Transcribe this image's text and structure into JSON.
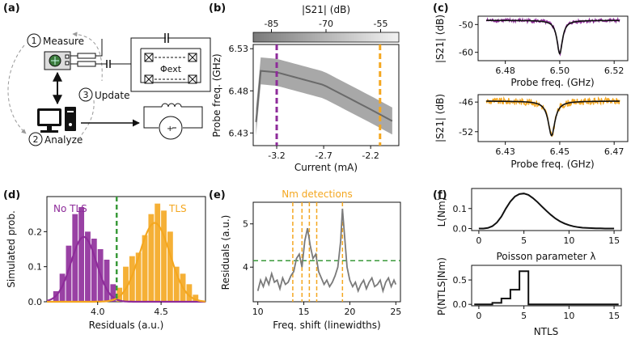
{
  "panels": {
    "a": {
      "label": "(a)",
      "steps": [
        {
          "num": "1",
          "text": "Measure"
        },
        {
          "num": "2",
          "text": "Analyze"
        },
        {
          "num": "3",
          "text": "Update"
        }
      ],
      "flux_label": "Φext"
    },
    "b": {
      "label": "(b)",
      "colorbar_label": "|S21| (dB)",
      "colorbar_ticks": [
        "-85",
        "-70",
        "-55"
      ],
      "ylabel": "Probe freq. (GHz)",
      "xlabel": "Current (mA)",
      "yticks": [
        "6.53",
        "6.48",
        "6.43"
      ],
      "xticks": [
        "-3.2",
        "-2.7",
        "-2.2"
      ],
      "markers": [
        {
          "current_mA": -3.2,
          "color": "#8e2c9a"
        },
        {
          "current_mA": -2.1,
          "color": "#f4a720"
        }
      ]
    },
    "c": {
      "label": "(c)",
      "top": {
        "ylabel": "|S21| (dB)",
        "xlabel": "Probe freq. (GHz)",
        "yticks": [
          "-50",
          "-60"
        ],
        "xticks": [
          "6.48",
          "6.50",
          "6.52"
        ],
        "color": "#8e2c9a"
      },
      "bottom": {
        "ylabel": "|S21| (dB)",
        "xlabel": "Probe freq. (GHz)",
        "yticks": [
          "-46",
          "-52"
        ],
        "xticks": [
          "6.43",
          "6.45",
          "6.47"
        ],
        "color": "#f4a720"
      }
    },
    "d": {
      "label": "(d)",
      "ylabel": "Simulated prob.",
      "xlabel": "Residuals (a.u.)",
      "yticks": [
        "0.2",
        "0.1",
        "0.0"
      ],
      "xticks": [
        "4.0",
        "4.5"
      ],
      "legend_left": "No TLS",
      "legend_right": "TLS",
      "colors": {
        "no_tls": "#8e2c9a",
        "tls": "#f4a720",
        "threshold": "#3a9a3a"
      }
    },
    "e": {
      "label": "(e)",
      "title": "Nm detections",
      "ylabel": "Residuals (a.u.)",
      "xlabel": "Freq. shift (linewidths)",
      "yticks": [
        "5",
        "4"
      ],
      "xticks": [
        "10",
        "15",
        "20",
        "25"
      ]
    },
    "f": {
      "label": "(f)",
      "top": {
        "ylabel": "L(Nm)",
        "xlabel": "Poisson parameter λ",
        "yticks": [
          "0.1",
          "0.0"
        ],
        "xticks": [
          "0",
          "5",
          "10",
          "15"
        ]
      },
      "bottom": {
        "ylabel": "P(NTLS|Nm)",
        "xlabel": "NTLS",
        "yticks": [
          "0.5",
          "0.0"
        ],
        "xticks": [
          "0",
          "5",
          "10",
          "15"
        ]
      }
    }
  },
  "chart_data": [
    {
      "type": "heatmap",
      "panel": "b",
      "title": "",
      "xlabel": "Current (mA)",
      "ylabel": "Probe freq. (GHz)",
      "colorbar_label": "|S21| (dB)",
      "xlim": [
        -3.45,
        -1.9
      ],
      "ylim": [
        6.415,
        6.535
      ],
      "zlim": [
        -90,
        -50
      ],
      "resonance": {
        "x": [
          -3.4,
          -3.2,
          -2.7,
          -2.2,
          -1.95
        ],
        "y": [
          6.504,
          6.502,
          6.487,
          6.458,
          6.443
        ]
      },
      "band_halfwidth_ghz": 0.016,
      "dashed_lines_x": [
        -3.2,
        -2.1
      ]
    },
    {
      "type": "line",
      "panel": "c-top",
      "xlabel": "Probe freq. (GHz)",
      "ylabel": "|S21| (dB)",
      "xlim": [
        6.47,
        6.525
      ],
      "ylim": [
        -63,
        -47
      ],
      "center": 6.5,
      "depth_db": 12,
      "baseline_db": -48.5,
      "width_ghz": 0.0012
    },
    {
      "type": "line",
      "panel": "c-bottom",
      "xlabel": "Probe freq. (GHz)",
      "ylabel": "|S21| (dB)",
      "xlim": [
        6.42,
        6.475
      ],
      "ylim": [
        -54,
        -44.5
      ],
      "center": 6.447,
      "depth_db": 7,
      "baseline_db": -45.8,
      "width_ghz": 0.0015
    },
    {
      "type": "bar",
      "panel": "d",
      "xlabel": "Residuals (a.u.)",
      "ylabel": "Simulated prob.",
      "xlim": [
        3.6,
        4.85
      ],
      "ylim": [
        0,
        0.3
      ],
      "series": [
        {
          "name": "No TLS",
          "bin_edges": [
            3.65,
            3.7,
            3.75,
            3.8,
            3.85,
            3.9,
            3.95,
            4.0,
            4.05,
            4.1,
            4.15
          ],
          "values": [
            0.03,
            0.08,
            0.16,
            0.25,
            0.27,
            0.2,
            0.18,
            0.15,
            0.12,
            0.05
          ],
          "gauss_mu": 3.89,
          "gauss_sigma": 0.1,
          "gauss_peak": 0.185
        },
        {
          "name": "TLS",
          "bin_edges": [
            4.15,
            4.2,
            4.25,
            4.3,
            4.35,
            4.4,
            4.45,
            4.5,
            4.55,
            4.6,
            4.65,
            4.7,
            4.75,
            4.8
          ],
          "values": [
            0.04,
            0.1,
            0.13,
            0.14,
            0.19,
            0.25,
            0.28,
            0.26,
            0.2,
            0.1,
            0.08,
            0.05,
            0.02
          ],
          "gauss_mu": 4.45,
          "gauss_sigma": 0.12,
          "gauss_peak": 0.225
        }
      ],
      "threshold_x": 4.15
    },
    {
      "type": "line",
      "panel": "e",
      "xlabel": "Freq. shift (linewidths)",
      "ylabel": "Residuals (a.u.)",
      "xlim": [
        9.5,
        25.5
      ],
      "ylim": [
        3.2,
        5.5
      ],
      "threshold_y": 4.15,
      "detections_x": [
        13.8,
        14.8,
        15.6,
        16.4,
        19.2
      ],
      "x": [
        10,
        10.3,
        10.6,
        10.9,
        11.2,
        11.5,
        11.8,
        12.1,
        12.4,
        12.7,
        13.0,
        13.3,
        13.6,
        13.9,
        14.2,
        14.5,
        14.8,
        15.1,
        15.4,
        15.7,
        16.0,
        16.3,
        16.6,
        16.9,
        17.2,
        17.5,
        17.8,
        18.1,
        18.4,
        18.7,
        19.0,
        19.2,
        19.4,
        19.7,
        20.0,
        20.3,
        20.6,
        20.9,
        21.2,
        21.5,
        21.8,
        22.1,
        22.4,
        22.7,
        23.0,
        23.3,
        23.6,
        23.9,
        24.2,
        24.5,
        24.8,
        25.0
      ],
      "y": [
        3.45,
        3.7,
        3.55,
        3.75,
        3.6,
        3.85,
        3.65,
        3.7,
        3.5,
        3.75,
        3.6,
        3.65,
        3.8,
        3.9,
        4.2,
        4.3,
        4.0,
        4.6,
        4.9,
        4.5,
        4.2,
        4.3,
        3.9,
        3.75,
        3.6,
        3.7,
        3.55,
        3.65,
        3.8,
        4.0,
        4.6,
        5.35,
        4.8,
        4.0,
        3.7,
        3.55,
        3.65,
        3.45,
        3.6,
        3.7,
        3.5,
        3.65,
        3.75,
        3.55,
        3.6,
        3.7,
        3.45,
        3.65,
        3.75,
        3.55,
        3.7,
        3.6
      ]
    },
    {
      "type": "line",
      "panel": "f-top",
      "xlabel": "Poisson parameter λ",
      "ylabel": "L(Nm)",
      "xlim": [
        -0.8,
        15.8
      ],
      "ylim": [
        -0.01,
        0.2
      ],
      "x": [
        0,
        0.5,
        1,
        1.5,
        2,
        2.5,
        3,
        3.5,
        4,
        4.5,
        5,
        5.5,
        6,
        6.5,
        7,
        7.5,
        8,
        8.5,
        9,
        9.5,
        10,
        10.5,
        11,
        11.5,
        12,
        12.5,
        13,
        13.5,
        14,
        14.5,
        15
      ],
      "y": [
        0.0,
        0.0,
        0.003,
        0.012,
        0.03,
        0.06,
        0.1,
        0.135,
        0.16,
        0.172,
        0.175,
        0.168,
        0.152,
        0.132,
        0.11,
        0.088,
        0.068,
        0.05,
        0.036,
        0.025,
        0.017,
        0.011,
        0.007,
        0.004,
        0.003,
        0.002,
        0.001,
        0.001,
        0.0,
        0.0,
        0.0
      ]
    },
    {
      "type": "bar",
      "panel": "f-bottom",
      "xlabel": "NTLS",
      "ylabel": "P(NTLS|Nm)",
      "xlim": [
        -0.8,
        15.8
      ],
      "ylim": [
        -0.03,
        0.8
      ],
      "categories": [
        0,
        1,
        2,
        3,
        4,
        5,
        6,
        7,
        8,
        9,
        10,
        11,
        12,
        13,
        14,
        15
      ],
      "values": [
        0.0,
        0.0,
        0.03,
        0.12,
        0.3,
        0.68,
        0.0,
        0.0,
        0.0,
        0.0,
        0.0,
        0.0,
        0.0,
        0.0,
        0.0,
        0.0
      ]
    }
  ]
}
